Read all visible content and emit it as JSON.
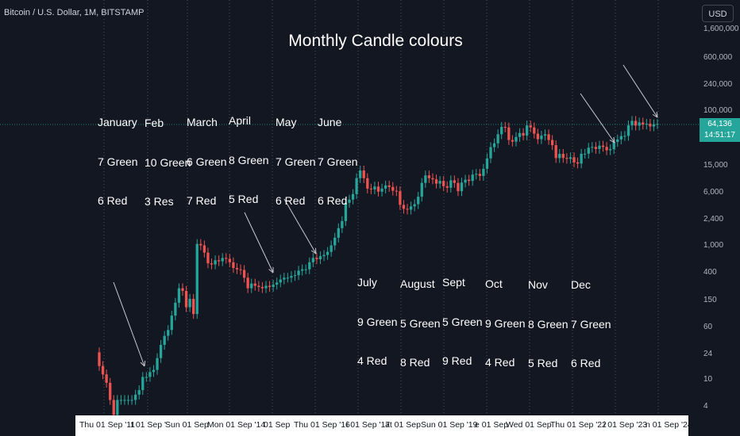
{
  "header": {
    "symbol": "Bitcoin / U.S. Dollar, 1M, BITSTAMP",
    "currency_button": "USD"
  },
  "chart_data": {
    "type": "candlestick",
    "title": "Monthly Candle colours",
    "y_scale": "log",
    "ylim": [
      3.2,
      1800000
    ],
    "y_ticks": [
      "1,600,000",
      "600,000",
      "240,000",
      "100,000",
      "15,000",
      "6,000",
      "2,400",
      "1,000",
      "400",
      "150",
      "60",
      "24",
      "10",
      "4"
    ],
    "x_ticks": [
      "Thu 01 Sep '11",
      "t 01 Sep '",
      "Sun 01 Sep",
      "Mon 01 Sep '14",
      "01 Sep",
      "Thu 01 Sep '16",
      "i 01 Sep '17",
      "at 01 Sep",
      "Sun 01 Sep '19",
      "e 01 Sep",
      "Wed 01 Sep",
      "Thu 01 Sep '22",
      "i 01 Sep '23",
      "n 01 Sep '24"
    ],
    "last_price": "64,136",
    "countdown": "14:51:17",
    "colors": {
      "up": "#26a69a",
      "down": "#ef5350",
      "background": "#131722"
    },
    "annotations": [
      {
        "month": "January",
        "green": "7 Green",
        "red": "6 Red"
      },
      {
        "month": "Feb",
        "green": "10 Green",
        "red": "3 Res"
      },
      {
        "month": "March",
        "green": "6 Green",
        "red": "7 Red"
      },
      {
        "month": "April",
        "green": "8 Green",
        "red": "5 Red"
      },
      {
        "month": "May",
        "green": "7 Green",
        "red": "6 Red"
      },
      {
        "month": "June",
        "green": "7 Green",
        "red": "6 Red"
      },
      {
        "month": "July",
        "green": "9 Green",
        "red": "4 Red"
      },
      {
        "month": "August",
        "green": "5 Green",
        "red": "8 Red"
      },
      {
        "month": "Sept",
        "green": "5 Green",
        "red": "9 Red"
      },
      {
        "month": "Oct",
        "green": "9 Green",
        "red": "4 Red"
      },
      {
        "month": "Nov",
        "green": "8 Green",
        "red": "5 Red"
      },
      {
        "month": "Dec",
        "green": "7 Green",
        "red": "6 Red"
      }
    ],
    "candle_closes": [
      16,
      12,
      9,
      5,
      3,
      5,
      5,
      5,
      5,
      5,
      6,
      7,
      11,
      11,
      13,
      14,
      21,
      33,
      45,
      55,
      90,
      140,
      230,
      210,
      120,
      160,
      95,
      1050,
      1000,
      780,
      540,
      520,
      600,
      580,
      650,
      630,
      560,
      460,
      440,
      430,
      330,
      230,
      270,
      250,
      240,
      230,
      250,
      240,
      260,
      280,
      310,
      330,
      330,
      350,
      360,
      420,
      440,
      440,
      560,
      650,
      620,
      690,
      720,
      800,
      1000,
      1300,
      1800,
      2300,
      4300,
      4800,
      5800,
      10000,
      13000,
      10000,
      7000,
      6800,
      7500,
      6300,
      7000,
      7800,
      7400,
      6500,
      6400,
      4000,
      3500,
      3400,
      3800,
      4100,
      5300,
      8500,
      11000,
      10000,
      9600,
      8300,
      9100,
      7600,
      7200,
      9300,
      8500,
      6400,
      8600,
      9500,
      9100,
      11300,
      11600,
      10800,
      13800,
      19700,
      29000,
      33000,
      45000,
      58000,
      57000,
      37000,
      35000,
      41000,
      47000,
      43000,
      61000,
      57000,
      46000,
      38000,
      43000,
      45000,
      37000,
      31000,
      19900,
      23000,
      20000,
      19400,
      20500,
      17200,
      16500,
      23100,
      23100,
      28400,
      29200,
      27200,
      30500,
      29200,
      26000,
      27000,
      34600,
      37700,
      42300,
      42600,
      61100,
      71300,
      60600,
      67500,
      62700,
      64600,
      58900,
      63300,
      64136
    ]
  }
}
